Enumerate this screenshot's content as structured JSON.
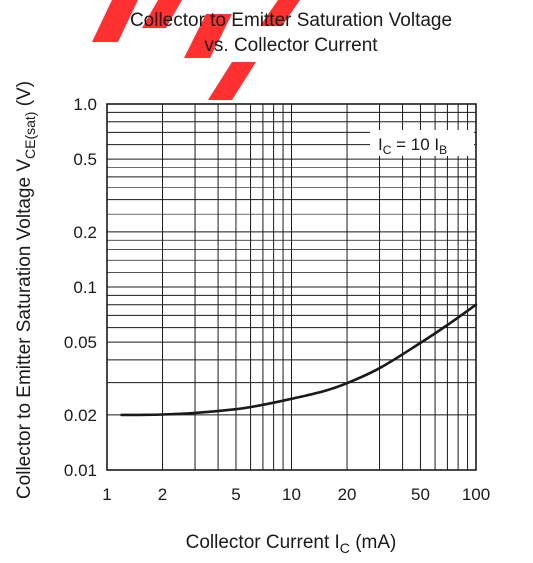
{
  "chart_data": {
    "type": "line",
    "title_line1": "Collector to Emitter Saturation Voltage",
    "title_line2": "vs. Collector Current",
    "xlabel_main": "Collector Current  I",
    "xlabel_sub": "C",
    "xlabel_unit": "  (mA)",
    "ylabel_main": "Collector to Emitter Saturation Voltage  V",
    "ylabel_sub": "CE(sat)",
    "ylabel_unit": "  (V)",
    "x_scale": "log",
    "y_scale": "log",
    "xlim": [
      1,
      100
    ],
    "ylim": [
      0.01,
      1.0
    ],
    "grid": true,
    "x_ticks": [
      {
        "value": 1,
        "label": "1"
      },
      {
        "value": 2,
        "label": "2"
      },
      {
        "value": 5,
        "label": "5"
      },
      {
        "value": 10,
        "label": "10"
      },
      {
        "value": 20,
        "label": "20"
      },
      {
        "value": 50,
        "label": "50"
      },
      {
        "value": 100,
        "label": "100"
      }
    ],
    "y_ticks": [
      {
        "value": 1.0,
        "label": "1.0"
      },
      {
        "value": 0.5,
        "label": "0.5"
      },
      {
        "value": 0.2,
        "label": "0.2"
      },
      {
        "value": 0.1,
        "label": "0.1"
      },
      {
        "value": 0.05,
        "label": "0.05"
      },
      {
        "value": 0.02,
        "label": "0.02"
      },
      {
        "value": 0.01,
        "label": "0.01"
      }
    ],
    "annotation": {
      "a": "I",
      "a_sub": "C",
      "mid": " = 10 I",
      "b_sub": "B"
    },
    "series": [
      {
        "color": "#1a1a1a",
        "x": [
          1.2,
          1.5,
          2,
          3,
          5,
          7,
          10,
          15,
          20,
          30,
          50,
          70,
          100
        ],
        "y": [
          0.02,
          0.02,
          0.0201,
          0.0205,
          0.0215,
          0.0227,
          0.0245,
          0.027,
          0.0298,
          0.036,
          0.0495,
          0.062,
          0.08
        ]
      }
    ]
  },
  "watermark_color": "#ff1a1a"
}
